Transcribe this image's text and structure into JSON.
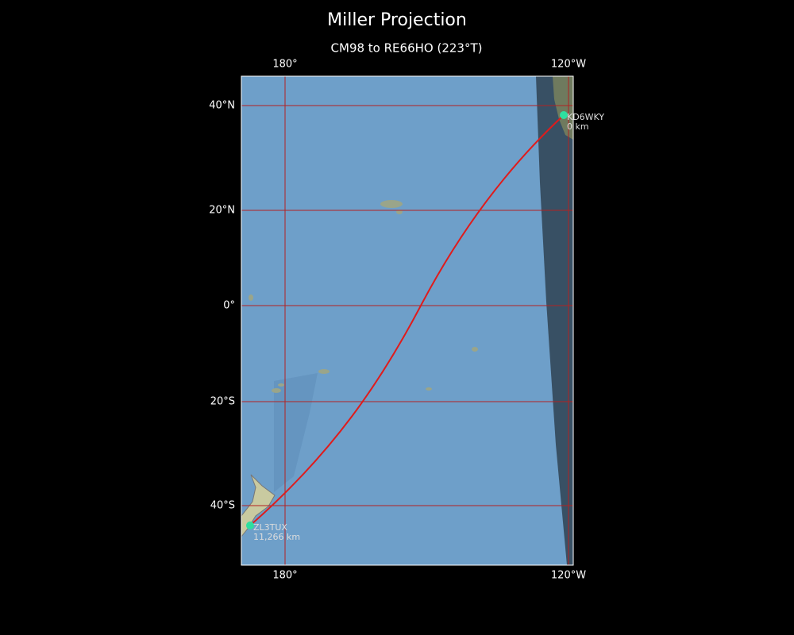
{
  "title": "Miller Projection",
  "subtitle": "CM98 to RE66HO (223°T)",
  "lon_labels": [
    "180°",
    "120°W"
  ],
  "lat_labels": [
    "40°N",
    "20°N",
    "0°",
    "20°S",
    "40°S"
  ],
  "stations": [
    {
      "call": "KD6WKY",
      "distance": "0 km"
    },
    {
      "call": "ZL3TUX",
      "distance": "11,266 km"
    }
  ]
}
